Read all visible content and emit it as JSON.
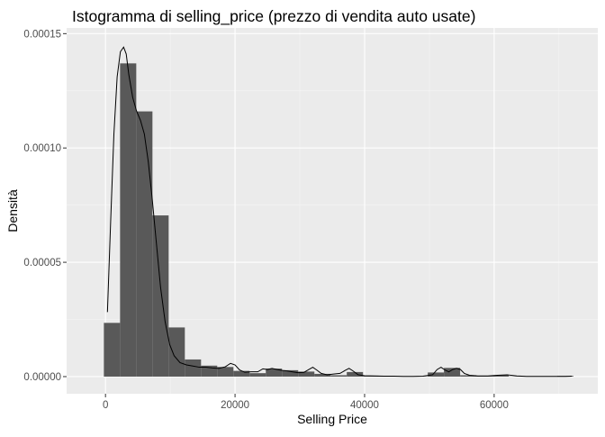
{
  "chart_data": {
    "type": "bar",
    "title": "Istogramma di selling_price (prezzo di vendita auto usate)",
    "xlabel": "Selling Price",
    "ylabel": "Densità",
    "xlim": [
      -6000,
      76000
    ],
    "ylim": [
      -7.5e-06,
      0.0001525
    ],
    "x_ticks": [
      0,
      20000,
      40000,
      60000
    ],
    "x_tick_labels": [
      "0",
      "20000",
      "40000",
      "60000"
    ],
    "y_ticks": [
      0,
      5e-05,
      0.0001,
      0.00015
    ],
    "y_tick_labels": [
      "0.00000",
      "0.00005",
      "0.00010",
      "0.00015"
    ],
    "grid": true,
    "histogram": {
      "bin_width": 2500,
      "bin_centers": [
        1000,
        3500,
        6000,
        8500,
        11000,
        13500,
        16000,
        18500,
        21000,
        23500,
        26000,
        28500,
        31000,
        33500,
        36000,
        38500,
        41000,
        43500,
        46000,
        48500,
        51000,
        53500,
        56000,
        58500,
        61000,
        63500,
        66000,
        68500,
        71000
      ],
      "densities": [
        2.35e-05,
        0.000137,
        0.000116,
        7.05e-05,
        2.15e-05,
        7.5e-06,
        4.8e-06,
        4.2e-06,
        2.5e-06,
        1.5e-06,
        3.5e-06,
        2.8e-06,
        2.2e-06,
        1.2e-06,
        6e-07,
        2e-06,
        4e-07,
        2e-07,
        1e-07,
        1e-07,
        1.8e-06,
        3.8e-06,
        6e-07,
        3e-07,
        6e-07,
        1e-07,
        1e-07,
        1e-07,
        3e-07
      ]
    },
    "density_curve": {
      "x": [
        300,
        800,
        1300,
        1800,
        2300,
        2800,
        3200,
        3600,
        4200,
        4800,
        5400,
        6000,
        6600,
        7200,
        7800,
        8500,
        9200,
        9900,
        10600,
        11500,
        12500,
        13500,
        14500,
        15500,
        16500,
        17500,
        18500,
        19300,
        20000,
        20700,
        21500,
        22500,
        23500,
        24300,
        25000,
        25700,
        26500,
        27300,
        28000,
        28800,
        29700,
        30600,
        31400,
        32000,
        32600,
        33300,
        34200,
        35200,
        36200,
        37000,
        37600,
        38200,
        39000,
        40000,
        41500,
        43000,
        44500,
        46000,
        47500,
        49000,
        50500,
        51200,
        51800,
        52400,
        53000,
        53600,
        54200,
        54800,
        55400,
        56200,
        57500,
        59000,
        60500,
        62000,
        63500,
        65000,
        66500,
        68000,
        69500,
        71000,
        72000
      ],
      "y": [
        2.82e-05,
        6.81e-05,
        0.0001061,
        0.0001311,
        0.0001421,
        0.0001441,
        0.0001411,
        0.0001321,
        0.0001221,
        0.0001161,
        0.0001121,
        0.0001061,
        9.41e-05,
        7.81e-05,
        6.01e-05,
        3.91e-05,
        2.41e-05,
        1.41e-05,
        9.1e-06,
        6.1e-06,
        5.1e-06,
        4.6e-06,
        4.1e-06,
        4.1e-06,
        3.8e-06,
        3.6e-06,
        4.3e-06,
        5.8e-06,
        5.1e-06,
        2.9e-06,
        1.9e-06,
        2.1e-06,
        2.1e-06,
        3.4e-06,
        3.1e-06,
        3.6e-06,
        3.1e-06,
        2.7e-06,
        2.5e-06,
        2.1e-06,
        1.7e-06,
        1.8e-06,
        3.1e-06,
        4.1e-06,
        2.9e-06,
        1.4e-06,
        8e-07,
        1.1e-06,
        1.4e-06,
        2.7e-06,
        3.6e-06,
        2.5e-06,
        8e-07,
        4e-07,
        3e-07,
        2e-07,
        2e-07,
        1e-07,
        1e-07,
        2e-07,
        8e-07,
        3.1e-06,
        4.1e-06,
        2.9e-06,
        2.1e-06,
        3.1e-06,
        3.6e-06,
        3.1e-06,
        1.4e-06,
        6e-07,
        3e-07,
        3e-07,
        6e-07,
        8e-07,
        3e-07,
        1e-07,
        1e-07,
        1e-07,
        1e-07,
        1e-07,
        2e-07
      ]
    }
  },
  "colors": {
    "panel_background": "#ebebeb",
    "grid_major": "#ffffff",
    "grid_minor": "#f5f5f5",
    "bar_fill": "#595959",
    "curve": "#000000",
    "tick_text": "#4d4d4d",
    "title_text": "#000000"
  }
}
